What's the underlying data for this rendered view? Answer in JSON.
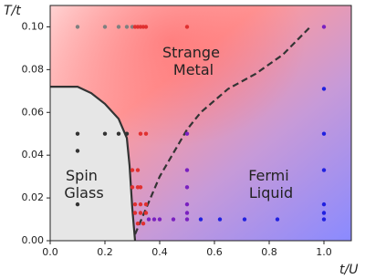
{
  "chart_data": {
    "type": "scatter",
    "x_label": "t/U",
    "y_label": "T/t",
    "xlim": [
      0,
      1.1
    ],
    "ylim": [
      0,
      0.11
    ],
    "xticks": [
      {
        "value": 0,
        "label": "0.0"
      },
      0.2,
      0.4,
      0.6,
      0.8,
      {
        "value": 1,
        "label": "1.0"
      }
    ],
    "yticks": [
      {
        "value": 0,
        "label": "0.00"
      },
      0.02,
      0.04,
      0.06,
      0.08,
      {
        "value": 0.1,
        "label": "0.10"
      }
    ],
    "annotations": [
      {
        "lines": [
          "Strange",
          "Metal"
        ]
      },
      {
        "lines": [
          "Spin",
          "Glass"
        ]
      },
      {
        "lines": [
          "Fermi",
          "Liquid"
        ]
      }
    ],
    "lines": [
      {
        "color": "#333333",
        "style": "solid",
        "x": [
          0,
          0.1,
          0.15,
          0.2,
          0.25,
          0.28,
          0.29,
          0.3,
          0.31
        ],
        "y": [
          0.072,
          0.072,
          0.069,
          0.064,
          0.057,
          0.048,
          0.035,
          0.015,
          0
        ]
      },
      {
        "color": "#333333",
        "style": "dashed",
        "x": [
          0.31,
          0.35,
          0.4,
          0.5,
          0.55,
          0.65,
          0.75,
          0.85,
          0.95
        ],
        "y": [
          0.003,
          0.015,
          0.03,
          0.052,
          0.06,
          0.071,
          0.078,
          0.087,
          0.1
        ]
      }
    ],
    "series": [
      {
        "color": "#808080",
        "x": [
          0.1,
          0.2,
          0.25,
          0.28,
          0.3
        ],
        "y": [
          0.1,
          0.1,
          0.1,
          0.1,
          0.1
        ]
      },
      {
        "color": "#333333",
        "x": [
          0.1,
          0.2,
          0.25,
          0.28,
          0.1,
          0.1
        ],
        "y": [
          0.05,
          0.05,
          0.05,
          0.05,
          0.042,
          0.017
        ]
      },
      {
        "color": "#e03030",
        "x": [
          0.31,
          0.32,
          0.33,
          0.34,
          0.35,
          0.5,
          0.33,
          0.35,
          0.3,
          0.32,
          0.3,
          0.32,
          0.33,
          0.31,
          0.33,
          0.35,
          0.31,
          0.33,
          0.35,
          0.32,
          0.34
        ],
        "y": [
          0.1,
          0.1,
          0.1,
          0.1,
          0.1,
          0.1,
          0.05,
          0.05,
          0.033,
          0.033,
          0.025,
          0.025,
          0.025,
          0.017,
          0.017,
          0.017,
          0.013,
          0.013,
          0.013,
          0.008,
          0.008
        ]
      },
      {
        "color": "#7a20c0",
        "x": [
          0.5,
          0.5,
          0.5,
          0.5,
          0.5,
          0.5,
          0.36,
          0.38,
          0.4,
          0.45,
          1.0
        ],
        "y": [
          0.05,
          0.033,
          0.025,
          0.017,
          0.013,
          0.01,
          0.01,
          0.01,
          0.01,
          0.01,
          0.1
        ]
      },
      {
        "color": "#2020e0",
        "x": [
          0.55,
          0.62,
          0.71,
          0.83,
          1.0,
          1.0,
          1.0,
          1.0,
          1.0,
          1.0
        ],
        "y": [
          0.01,
          0.01,
          0.01,
          0.01,
          0.01,
          0.013,
          0.017,
          0.033,
          0.05,
          0.071
        ]
      }
    ]
  }
}
